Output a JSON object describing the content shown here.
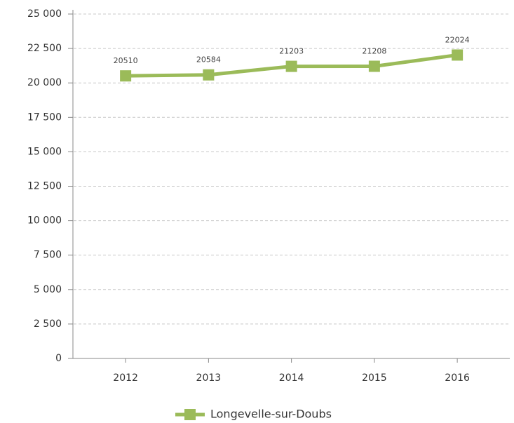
{
  "chart_data": {
    "type": "line",
    "categories": [
      "2012",
      "2013",
      "2014",
      "2015",
      "2016"
    ],
    "series": [
      {
        "name": "Longevelle-sur-Doubs",
        "color": "#9bbb59",
        "values": [
          20510,
          20584,
          21203,
          21208,
          22024
        ]
      }
    ],
    "ylim": [
      0,
      25000
    ],
    "yticks": [
      0,
      {
        "value": 2500,
        "label": "2 500"
      },
      {
        "value": 5000,
        "label": "5 000"
      },
      {
        "value": 7500,
        "label": "7 500"
      },
      {
        "value": 10000,
        "label": "10 000"
      },
      {
        "value": 12500,
        "label": "12 500"
      },
      {
        "value": 15000,
        "label": "15 000"
      },
      {
        "value": 17500,
        "label": "17 500"
      },
      {
        "value": 20000,
        "label": "20 000"
      },
      {
        "value": 22500,
        "label": "22 500"
      },
      {
        "value": 25000,
        "label": "25 000"
      }
    ],
    "grid": true,
    "legend": "bottom"
  }
}
